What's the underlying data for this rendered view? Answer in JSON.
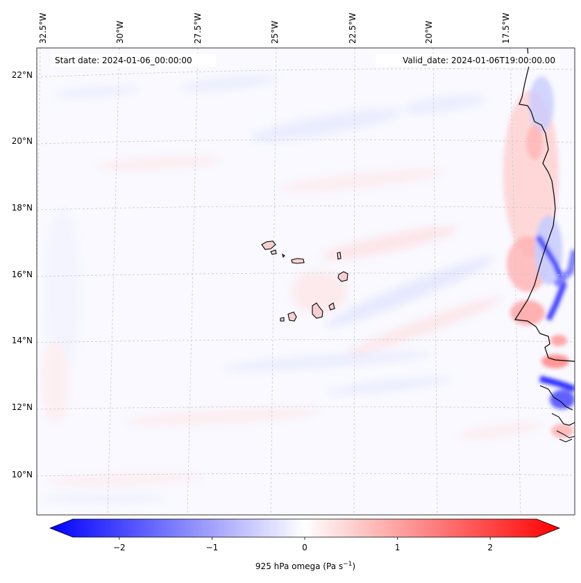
{
  "map": {
    "start_date_text": "Start date: 2024-01-06_00:00:00",
    "valid_date_text": "Valid_date: 2024-01-06T19:00:00.00",
    "lon_labels": [
      "32.5°W",
      "30°W",
      "27.5°W",
      "25°W",
      "22.5°W",
      "20°W",
      "17.5°W"
    ],
    "lat_labels": [
      "22°N",
      "20°N",
      "18°N",
      "16°N",
      "14°N",
      "12°N",
      "10°N"
    ],
    "gridlines": true,
    "coastline_color": "#000000",
    "island_fill": "#f6d0d0"
  },
  "colorbar": {
    "label_main": "925 hPa omega (Pa s",
    "label_exp": "−1",
    "label_close": ")",
    "tick_labels": [
      "−2",
      "−1",
      "0",
      "1",
      "2"
    ],
    "tick_values": [
      -2,
      -1,
      0,
      1,
      2
    ],
    "range": [
      -2.6,
      2.6
    ],
    "colormap": "bwr",
    "color_min": "#0000ff",
    "color_mid": "#ffffff",
    "color_max": "#ff0000"
  }
}
